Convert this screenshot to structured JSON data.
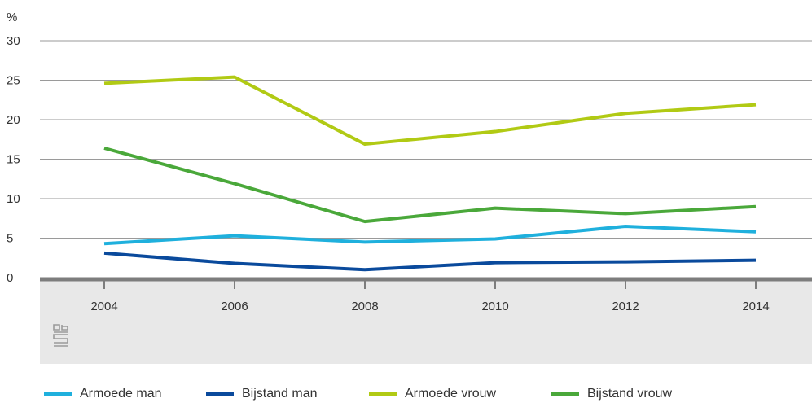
{
  "chart_data": {
    "type": "line",
    "ylabel": "%",
    "x": [
      "2004",
      "2006",
      "2008",
      "2010",
      "2012",
      "2014"
    ],
    "yticks": [
      "0",
      "5",
      "10",
      "15",
      "20",
      "25",
      "30"
    ],
    "ylim": [
      0,
      30
    ],
    "grid": true,
    "legend_position": "bottom",
    "series": [
      {
        "name": "Armoede man",
        "color": "#1fb0dd",
        "values": [
          4.3,
          5.3,
          4.5,
          4.9,
          6.5,
          5.8
        ]
      },
      {
        "name": "Bijstand man",
        "color": "#0a4a9c",
        "values": [
          3.1,
          1.8,
          1.0,
          1.9,
          2.0,
          2.2
        ]
      },
      {
        "name": "Armoede vrouw",
        "color": "#b1ca14",
        "values": [
          24.6,
          25.4,
          16.9,
          18.5,
          20.8,
          21.9
        ]
      },
      {
        "name": "Bijstand vrouw",
        "color": "#4aa83a",
        "values": [
          16.4,
          11.9,
          7.1,
          8.8,
          8.1,
          9.0
        ]
      }
    ]
  },
  "logo": {
    "icon": "cbs-logo-icon"
  }
}
